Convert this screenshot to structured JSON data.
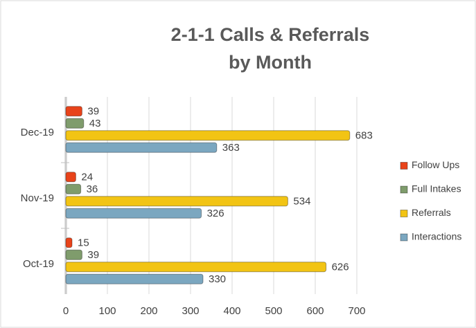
{
  "chart_data": {
    "type": "bar",
    "orientation": "horizontal",
    "title": "2-1-1 Calls & Referrals by Month",
    "categories": [
      "Oct-19",
      "Nov-19",
      "Dec-19"
    ],
    "series": [
      {
        "name": "Interactions",
        "color": "#7ba7c0",
        "values": [
          330,
          326,
          363
        ]
      },
      {
        "name": "Referrals",
        "color": "#f2c414",
        "values": [
          626,
          534,
          683
        ]
      },
      {
        "name": "Full Intakes",
        "color": "#7f9c6c",
        "values": [
          39,
          36,
          43
        ]
      },
      {
        "name": "Follow Ups",
        "color": "#e8431a",
        "values": [
          15,
          24,
          39
        ]
      }
    ],
    "xlim": [
      0,
      700
    ],
    "xticks": [
      0,
      100,
      200,
      300,
      400,
      500,
      600,
      700
    ],
    "grid": true,
    "legend": "right"
  }
}
